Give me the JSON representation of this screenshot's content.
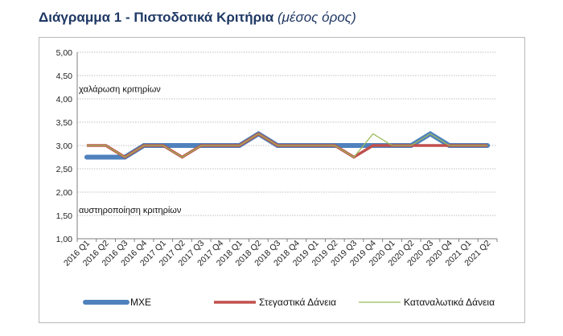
{
  "header": {
    "title": "Διάγραμμα 1 - Πιστοδοτικά Κριτήρια",
    "subtitle": "(μέσος όρος)"
  },
  "chart_data": {
    "type": "line",
    "title": "Διάγραμμα 1 - Πιστοδοτικά Κριτήρια (μέσος όρος)",
    "xlabel": "",
    "ylabel": "",
    "ylim": [
      1.0,
      5.0
    ],
    "ytick_labels": [
      "1,00",
      "1,50",
      "2,00",
      "2,50",
      "3,00",
      "3,50",
      "4,00",
      "4,50",
      "5,00"
    ],
    "grid": true,
    "legend_position": "bottom",
    "categories": [
      "2016 Q1",
      "2016 Q2",
      "2016 Q3",
      "2016 Q4",
      "2017 Q1",
      "2017 Q2",
      "2017 Q3",
      "2017 Q4",
      "2018 Q1",
      "2018 Q2",
      "2018 Q3",
      "2018 Q4",
      "2019 Q1",
      "2019 Q2",
      "2019 Q3",
      "2019 Q4",
      "2020 Q1",
      "2020 Q2",
      "2020 Q3",
      "2020 Q4",
      "2021 Q1",
      "2021 Q2"
    ],
    "series": [
      {
        "name": "ΜΧΕ",
        "color": "#4f81bd",
        "values": [
          2.75,
          2.75,
          2.75,
          3.0,
          3.0,
          3.0,
          3.0,
          3.0,
          3.0,
          3.25,
          3.0,
          3.0,
          3.0,
          3.0,
          3.0,
          3.0,
          3.0,
          3.0,
          3.25,
          3.0,
          3.0,
          3.0
        ]
      },
      {
        "name": "Στεγαστικά Δάνεια",
        "color": "#c0504d",
        "values": [
          3.0,
          3.0,
          2.75,
          3.0,
          3.0,
          2.75,
          3.0,
          3.0,
          3.0,
          3.25,
          3.0,
          3.0,
          3.0,
          3.0,
          2.75,
          3.0,
          3.0,
          3.0,
          3.0,
          3.0,
          3.0,
          3.0
        ]
      },
      {
        "name": "Καταναλωτικά Δάνεια",
        "color": "#9bbb59",
        "values": [
          3.0,
          3.0,
          2.75,
          3.0,
          3.0,
          2.75,
          3.0,
          3.0,
          3.0,
          3.25,
          3.0,
          3.0,
          3.0,
          3.0,
          2.75,
          3.25,
          3.0,
          3.0,
          3.25,
          3.0,
          3.0,
          3.0
        ]
      }
    ],
    "annotations": [
      {
        "text": "χαλάρωση κριτηρίων",
        "y": 4.15
      },
      {
        "text": "αυστηροποίηση κριτηρίων",
        "y": 1.55
      }
    ]
  }
}
